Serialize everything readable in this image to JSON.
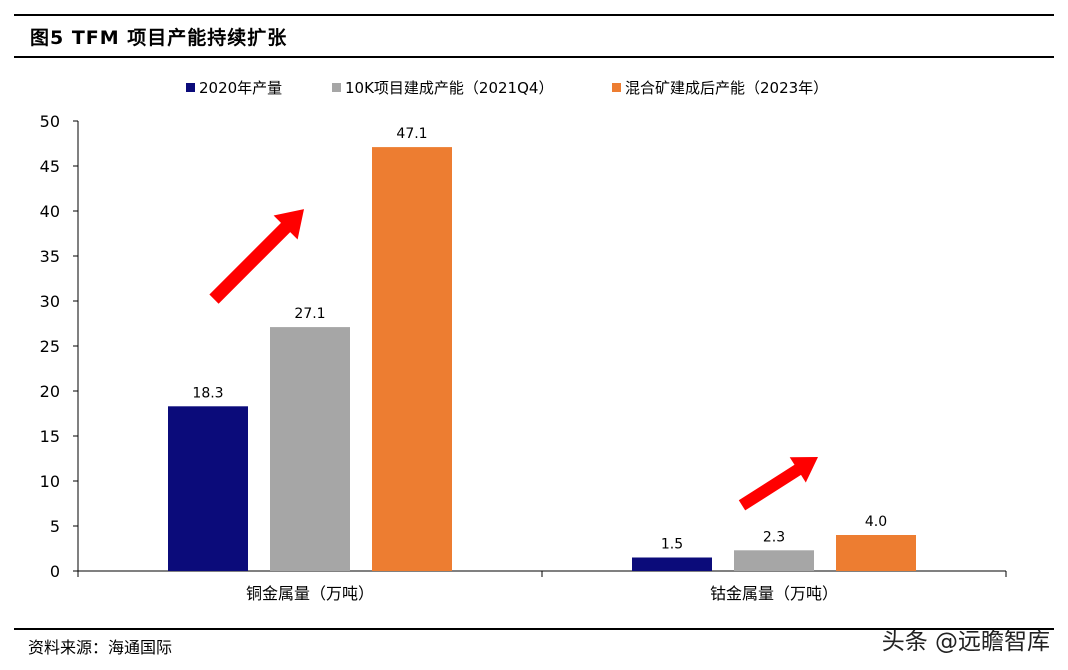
{
  "figure_title": "图5  TFM 项目产能持续扩张",
  "source_text": "资料来源：海通国际",
  "watermark_text": "头条 @远瞻智库",
  "chart_data": {
    "type": "bar",
    "categories": [
      "铜金属量（万吨）",
      "钴金属量（万吨）"
    ],
    "series": [
      {
        "name": "2020年产量",
        "color": "#0B0B7A",
        "values": [
          18.3,
          1.5
        ],
        "labels": [
          "18.3",
          "1.5"
        ]
      },
      {
        "name": "10K项目建成产能（2021Q4）",
        "color": "#A6A6A6",
        "values": [
          27.1,
          2.3
        ],
        "labels": [
          "27.1",
          "2.3"
        ]
      },
      {
        "name": "混合矿建成后产能（2023年）",
        "color": "#ED7D31",
        "values": [
          47.1,
          4.0
        ],
        "labels": [
          "47.1",
          "4.0"
        ]
      }
    ],
    "ylim": [
      0,
      50
    ],
    "yticks": [
      0,
      5,
      10,
      15,
      20,
      25,
      30,
      35,
      40,
      45,
      50
    ],
    "legend_position": "top",
    "grid": false,
    "annotations": [
      {
        "type": "arrow",
        "color": "#FF0000",
        "direction": "up-right",
        "category": "铜金属量（万吨）"
      },
      {
        "type": "arrow",
        "color": "#FF0000",
        "direction": "up-right",
        "category": "钴金属量（万吨）"
      }
    ]
  }
}
